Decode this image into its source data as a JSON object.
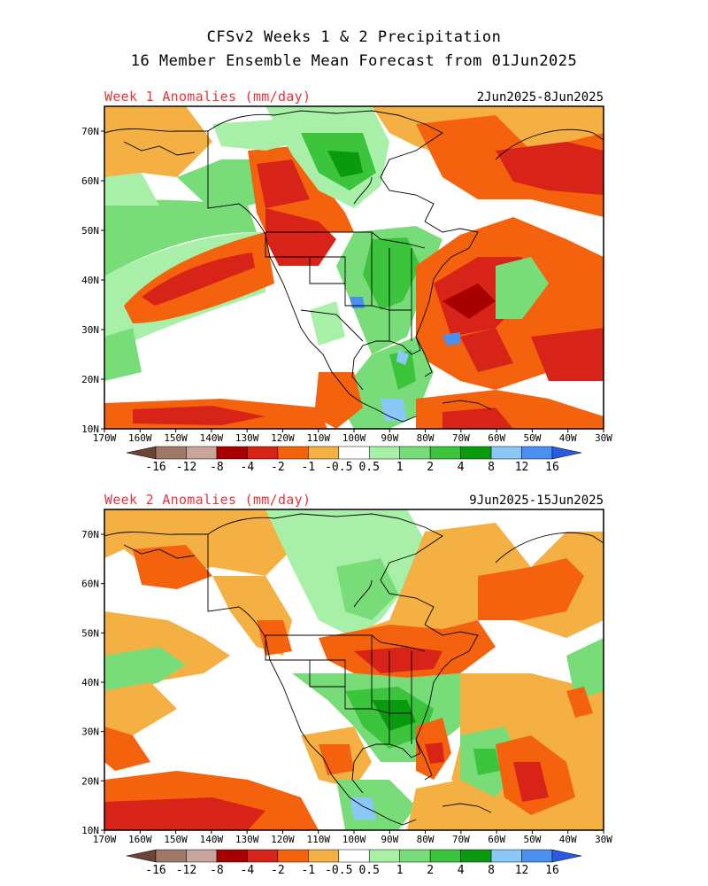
{
  "title_line1": "CFSv2 Weeks 1 & 2 Precipitation",
  "title_line2": "16 Member Ensemble Mean Forecast from 01Jun2025",
  "colors": {
    "anomaly_title": "#e8333a",
    "border": "#000000",
    "bins": [
      "#6b4436",
      "#a07868",
      "#c8a49a",
      "#a80000",
      "#d82418",
      "#f5620e",
      "#f5b044",
      "#ffffff",
      "#a8f0a8",
      "#78dc78",
      "#3cc43c",
      "#0a9a10",
      "#8ac8f8",
      "#4a90f0",
      "#2a5ae0"
    ]
  },
  "colorbar": {
    "labels": [
      "-16",
      "-12",
      "-8",
      "-4",
      "-2",
      "-1",
      "-0.5",
      "0.5",
      "1",
      "2",
      "4",
      "8",
      "12",
      "16"
    ]
  },
  "panels": [
    {
      "label": "Week 1 Anomalies (mm/day)",
      "dates": "2Jun2025-8Jun2025",
      "x_ticks": [
        "170W",
        "160W",
        "150W",
        "140W",
        "130W",
        "120W",
        "110W",
        "100W",
        "90W",
        "80W",
        "70W",
        "60W",
        "50W",
        "40W",
        "30W"
      ],
      "y_ticks": [
        "10N",
        "20N",
        "30N",
        "40N",
        "50N",
        "60N",
        "70N"
      ]
    },
    {
      "label": "Week 2 Anomalies (mm/day)",
      "dates": "9Jun2025-15Jun2025",
      "x_ticks": [
        "170W",
        "160W",
        "150W",
        "140W",
        "130W",
        "120W",
        "110W",
        "100W",
        "90W",
        "80W",
        "70W",
        "60W",
        "50W",
        "40W",
        "30W"
      ],
      "y_ticks": [
        "10N",
        "20N",
        "30N",
        "40N",
        "50N",
        "60N",
        "70N"
      ]
    }
  ]
}
